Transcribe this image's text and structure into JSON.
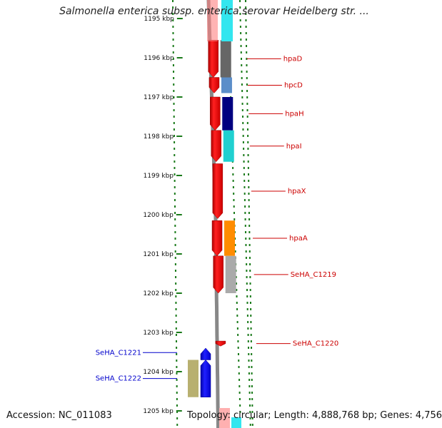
{
  "title": "Salmonella enterica subsp. enterica serovar Heidelberg str. ...",
  "footer": {
    "accession": "Accession: NC_011083",
    "topology": "Topology: circular; Length: 4,888,768 bp; Genes: 4,756"
  },
  "colors": {
    "backbone": "#888888",
    "cds_forward": "#ff0000",
    "cds_reverse": "#0000ff",
    "label_forward": "#cc0000",
    "label_reverse": "#0000cc",
    "tick": "#1a7a1a"
  },
  "ticks": [
    "1195 kbp",
    "1196 kbp",
    "1197 kbp",
    "1198 kbp",
    "1199 kbp",
    "1200 kbp",
    "1201 kbp",
    "1202 kbp",
    "1203 kbp",
    "1204 kbp",
    "1205 kbp"
  ],
  "genes": [
    {
      "label": "hpaD",
      "strand": "+",
      "start_kbp": 1195.55,
      "end_kbp": 1196.5,
      "cog_color": "#666666"
    },
    {
      "label": "hpcD",
      "strand": "+",
      "start_kbp": 1196.5,
      "end_kbp": 1196.9,
      "cog_color": "#5b8ec9"
    },
    {
      "label": "hpaH",
      "strand": "+",
      "start_kbp": 1197.0,
      "end_kbp": 1197.85,
      "cog_color": "#000080"
    },
    {
      "label": "hpaI",
      "strand": "+",
      "start_kbp": 1197.85,
      "end_kbp": 1198.65,
      "cog_color": "#20d0d0"
    },
    {
      "label": "hpaX",
      "strand": "+",
      "start_kbp": 1198.7,
      "end_kbp": 1200.1,
      "cog_color": ""
    },
    {
      "label": "hpaA",
      "strand": "+",
      "start_kbp": 1200.15,
      "end_kbp": 1201.05,
      "cog_color": "#ff8c00"
    },
    {
      "label": "SeHA_C1219",
      "strand": "+",
      "start_kbp": 1201.05,
      "end_kbp": 1202.0,
      "cog_color": "#aaaaaa"
    },
    {
      "label": "SeHA_C1220",
      "strand": "+",
      "start_kbp": 1203.22,
      "end_kbp": 1203.35,
      "cog_color": ""
    },
    {
      "label": "SeHA_C1221",
      "strand": "-",
      "start_kbp": 1203.4,
      "end_kbp": 1203.7,
      "cog_color": ""
    },
    {
      "label": "SeHA_C1222",
      "strand": "-",
      "start_kbp": 1203.7,
      "end_kbp": 1204.65,
      "cog_color": "#b8b070"
    }
  ]
}
